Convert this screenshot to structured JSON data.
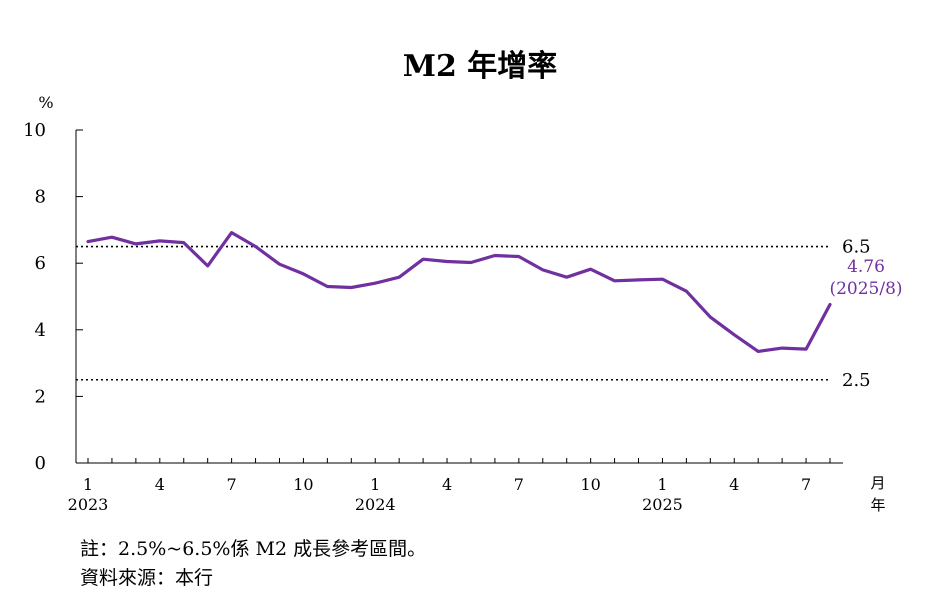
{
  "chart_data": {
    "type": "line",
    "title": "M2 年增率",
    "yunit": "%",
    "ylim": [
      0,
      10
    ],
    "yticks": [
      0,
      2,
      4,
      6,
      8,
      10
    ],
    "xlim": [
      1,
      32
    ],
    "xticks": [
      {
        "x": 1,
        "label": "1"
      },
      {
        "x": 4,
        "label": "4"
      },
      {
        "x": 7,
        "label": "7"
      },
      {
        "x": 10,
        "label": "10"
      },
      {
        "x": 13,
        "label": "1"
      },
      {
        "x": 16,
        "label": "4"
      },
      {
        "x": 19,
        "label": "7"
      },
      {
        "x": 22,
        "label": "10"
      },
      {
        "x": 25,
        "label": "1"
      },
      {
        "x": 28,
        "label": "4"
      },
      {
        "x": 31,
        "label": "7"
      }
    ],
    "year_labels": [
      {
        "x": 1,
        "label": "2023"
      },
      {
        "x": 13,
        "label": "2024"
      },
      {
        "x": 25,
        "label": "2025"
      }
    ],
    "xunit": "月\n年",
    "series": [
      {
        "color": "#7030a0",
        "x": [
          1,
          2,
          3,
          4,
          5,
          6,
          7,
          8,
          9,
          10,
          11,
          12,
          13,
          14,
          15,
          16,
          17,
          18,
          19,
          20,
          21,
          22,
          23,
          24,
          25,
          26,
          27,
          28,
          29,
          30,
          31,
          32
        ],
        "values": [
          6.65,
          6.78,
          6.58,
          6.67,
          6.62,
          5.92,
          6.92,
          6.5,
          5.97,
          5.68,
          5.3,
          5.27,
          5.4,
          5.58,
          6.12,
          6.05,
          6.02,
          6.23,
          6.2,
          5.8,
          5.58,
          5.82,
          5.47,
          5.5,
          5.52,
          5.16,
          4.38,
          3.85,
          3.35,
          3.45,
          3.42,
          4.76
        ]
      }
    ],
    "reference_lines": [
      {
        "value": 6.5,
        "label": "6.5"
      },
      {
        "value": 2.5,
        "label": "2.5"
      }
    ],
    "last_point_label": {
      "value": "4.76",
      "date": "(2025/8)"
    }
  },
  "notes": {
    "range_note": "註：2.5%~6.5%係 M2 成長參考區間。",
    "source": "資料來源：本行"
  },
  "colors": {
    "line": "#7030a0",
    "label": "#7030a0",
    "axis": "#000000"
  }
}
